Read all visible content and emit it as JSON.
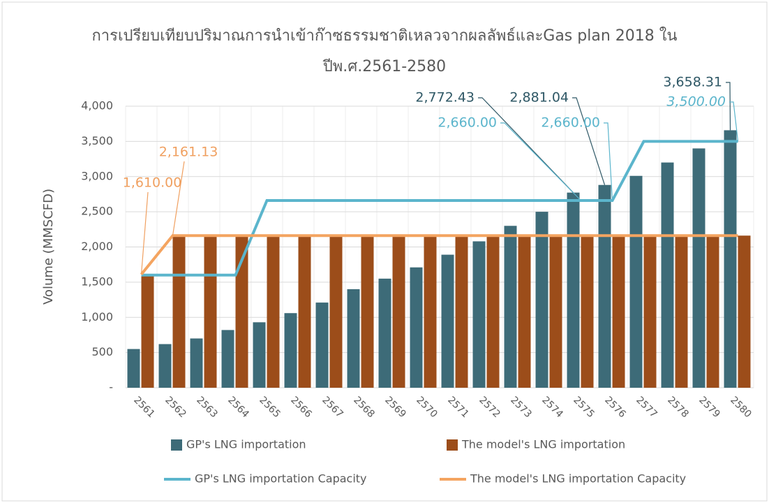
{
  "chart_data": {
    "type": "bar",
    "title": "การเปรียบเทียบปริมาณการนำเข้าก๊าซธรรมชาติเหลวจากผลลัพธ์และGas plan 2018 ใน",
    "subtitle": "ปีพ.ศ.2561-2580",
    "y_label": "Volume (MMSCFD)",
    "categories": [
      "2561",
      "2562",
      "2563",
      "2564",
      "2565",
      "2566",
      "2567",
      "2568",
      "2569",
      "2570",
      "2571",
      "2572",
      "2573",
      "2574",
      "2575",
      "2576",
      "2577",
      "2578",
      "2579",
      "2580"
    ],
    "ylim": [
      0,
      4000
    ],
    "yticks": [
      {
        "value": 0,
        "label": "-"
      },
      500,
      {
        "value": 1000,
        "label": "1,000"
      },
      {
        "value": 1500,
        "label": "1,500"
      },
      {
        "value": 2000,
        "label": "2,000"
      },
      {
        "value": 2500,
        "label": "2,500"
      },
      {
        "value": 3000,
        "label": "3,000"
      },
      {
        "value": 3500,
        "label": "3,500"
      },
      {
        "value": 4000,
        "label": "4,000"
      }
    ],
    "grid": true,
    "legend": "bottom",
    "series": [
      {
        "name": "GP's LNG importation",
        "type": "bar",
        "color": "#3d6b78",
        "values": [
          550,
          620,
          700,
          820,
          930,
          1060,
          1210,
          1400,
          1550,
          1710,
          1890,
          2080,
          2300,
          2500,
          2772.43,
          2881.04,
          3010,
          3200,
          3400,
          3658.31
        ],
        "value_labels": [
          null,
          null,
          null,
          null,
          null,
          null,
          null,
          null,
          null,
          null,
          null,
          null,
          null,
          null,
          "2,772.43",
          "2,881.04",
          null,
          null,
          null,
          "3,658.31"
        ]
      },
      {
        "name": "The model's LNG importation",
        "type": "bar",
        "color": "#9c4d1a",
        "values": [
          1610,
          2161.13,
          2161.13,
          2161.13,
          2161.13,
          2161.13,
          2161.13,
          2161.13,
          2161.13,
          2161.13,
          2161.13,
          2161.13,
          2161.13,
          2161.13,
          2161.13,
          2161.13,
          2161.13,
          2161.13,
          2161.13,
          2161.13
        ]
      },
      {
        "name": "GP's LNG importation Capacity",
        "type": "line",
        "color": "#5bb5cc",
        "values": [
          1600,
          1600,
          1600,
          1600,
          2660,
          2660,
          2660,
          2660,
          2660,
          2660,
          2660,
          2660,
          2660,
          2660,
          2660,
          2660,
          3500,
          3500,
          3500,
          3500
        ],
        "value_labels": [
          null,
          null,
          null,
          null,
          null,
          null,
          null,
          null,
          null,
          null,
          null,
          null,
          null,
          null,
          "2,660.00",
          "2,660.00",
          null,
          null,
          null,
          "3,500.00"
        ]
      },
      {
        "name": "The model's LNG importation Capacity",
        "type": "line",
        "color": "#f4a460",
        "values": [
          1610,
          2161.13,
          2161.13,
          2161.13,
          2161.13,
          2161.13,
          2161.13,
          2161.13,
          2161.13,
          2161.13,
          2161.13,
          2161.13,
          2161.13,
          2161.13,
          2161.13,
          2161.13,
          2161.13,
          2161.13,
          2161.13,
          2161.13
        ],
        "value_labels": [
          "1,610.00",
          "2,161.13",
          null,
          null,
          null,
          null,
          null,
          null,
          null,
          null,
          null,
          null,
          null,
          null,
          null,
          null,
          null,
          null,
          null,
          null
        ]
      }
    ]
  }
}
